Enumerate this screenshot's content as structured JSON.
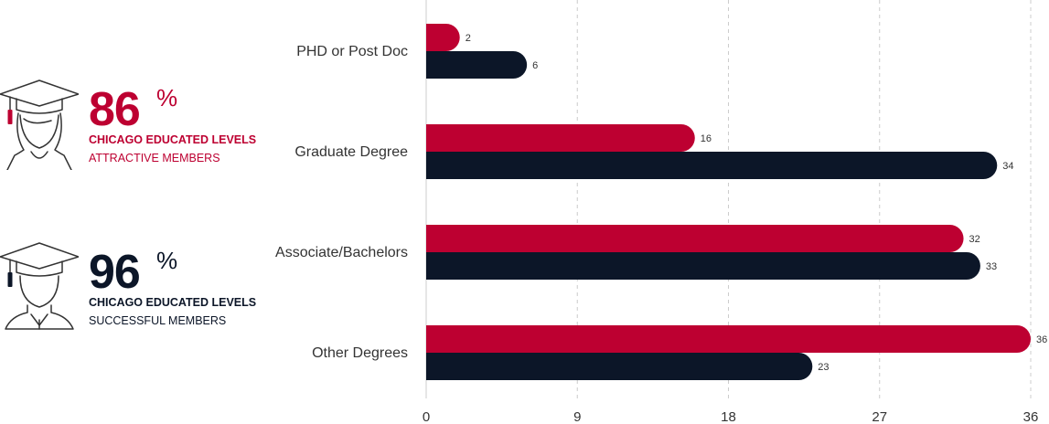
{
  "colors": {
    "red": "#bd0031",
    "navy": "#0c1628",
    "grid": "#cccccc",
    "text": "#333333"
  },
  "legend": [
    {
      "percent": "86",
      "sign": "%",
      "title": "CHICAGO EDUCATED LEVELS",
      "subtitle": "ATTRACTIVE MEMBERS",
      "color": "#bd0031",
      "icon": "female-graduate-icon"
    },
    {
      "percent": "96",
      "sign": "%",
      "title": "CHICAGO EDUCATED LEVELS",
      "subtitle": "SUCCESSFUL MEMBERS",
      "color": "#0c1628",
      "icon": "male-graduate-icon"
    }
  ],
  "chart_data": {
    "type": "bar",
    "orientation": "horizontal",
    "categories": [
      "PHD or Post Doc",
      "Graduate Degree",
      "Associate/Bachelors",
      "Other Degrees"
    ],
    "series": [
      {
        "values": [
          2,
          16,
          32,
          36
        ],
        "color": "#bd0031"
      },
      {
        "values": [
          6,
          34,
          33,
          23
        ],
        "color": "#0c1628"
      }
    ],
    "xlim": [
      0,
      36
    ],
    "xticks": [
      0,
      9,
      18,
      27,
      36
    ],
    "grid": "vertical-dashed",
    "data_labels": true
  }
}
